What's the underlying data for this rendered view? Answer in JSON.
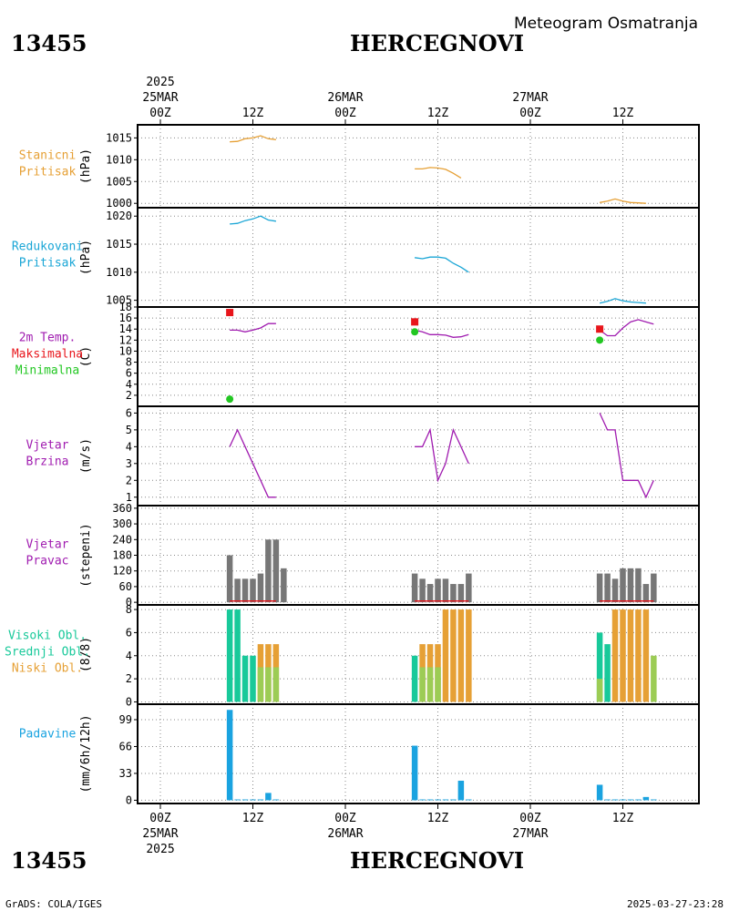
{
  "header": {
    "station_id": "13455",
    "station_name": "HERCEGNOVI",
    "subtitle": "Meteogram Osmatranja"
  },
  "time_axis": {
    "top": [
      {
        "year": "2025",
        "date": "25MAR",
        "hour": "00Z"
      },
      {
        "hour": "12Z"
      },
      {
        "date": "26MAR",
        "hour": "00Z"
      },
      {
        "hour": "12Z"
      },
      {
        "date": "27MAR",
        "hour": "00Z"
      },
      {
        "hour": "12Z"
      }
    ],
    "bottom": [
      {
        "hour": "00Z",
        "date": "25MAR",
        "year": "2025"
      },
      {
        "hour": "12Z"
      },
      {
        "hour": "00Z",
        "date": "26MAR"
      },
      {
        "hour": "12Z"
      },
      {
        "hour": "00Z",
        "date": "27MAR"
      },
      {
        "hour": "12Z"
      }
    ]
  },
  "footer": {
    "credit": "GrADS: COLA/IGES",
    "timestamp": "2025-03-27-23:28"
  },
  "colors": {
    "orange": "#e6a035",
    "cyan": "#1aa6d6",
    "red": "#e8151b",
    "green": "#22c722",
    "purple": "#a01cb0",
    "gray": "#777777",
    "teal": "#18c99a",
    "olive": "#9ccc55",
    "blue": "#1aa3e0"
  },
  "chart_data": [
    {
      "id": "stanicni",
      "type": "line",
      "labels": [
        {
          "text": "Stanicni",
          "color": "#e6a035"
        },
        {
          "text": "Pritisak",
          "color": "#e6a035"
        }
      ],
      "ylabel": "(hPa)",
      "ylim": [
        999,
        1018
      ],
      "yticks": [
        1000,
        1005,
        1010,
        1015
      ],
      "series": [
        {
          "color": "#e6a035",
          "points": [
            [
              9,
              1014.1
            ],
            [
              10,
              1014.2
            ],
            [
              11,
              1014.8
            ],
            [
              12,
              1015.0
            ],
            [
              13,
              1015.5
            ],
            [
              14,
              1014.8
            ],
            [
              15,
              1014.6
            ]
          ]
        },
        {
          "color": "#e6a035",
          "points": [
            [
              33,
              1007.9
            ],
            [
              34,
              1007.9
            ],
            [
              35,
              1008.2
            ],
            [
              36,
              1008.1
            ],
            [
              37,
              1007.8
            ],
            [
              38,
              1006.9
            ],
            [
              39,
              1005.8
            ]
          ]
        },
        {
          "color": "#e6a035",
          "points": [
            [
              57,
              1000.2
            ],
            [
              58,
              1000.5
            ],
            [
              59,
              1001.0
            ],
            [
              60,
              1000.5
            ],
            [
              61,
              1000.2
            ],
            [
              62,
              1000.1
            ],
            [
              63,
              1000.0
            ]
          ]
        }
      ]
    },
    {
      "id": "redukovani",
      "type": "line",
      "labels": [
        {
          "text": "Redukovani",
          "color": "#1aa6d6"
        },
        {
          "text": "Pritisak",
          "color": "#1aa6d6"
        }
      ],
      "ylabel": "(hPa)",
      "ylim": [
        1003.8,
        1021.5
      ],
      "yticks": [
        1005,
        1010,
        1015,
        1020
      ],
      "series": [
        {
          "color": "#1aa6d6",
          "points": [
            [
              9,
              1018.6
            ],
            [
              10,
              1018.7
            ],
            [
              11,
              1019.2
            ],
            [
              12,
              1019.5
            ],
            [
              13,
              1020.0
            ],
            [
              14,
              1019.3
            ],
            [
              15,
              1019.1
            ]
          ]
        },
        {
          "color": "#1aa6d6",
          "points": [
            [
              33,
              1012.6
            ],
            [
              34,
              1012.4
            ],
            [
              35,
              1012.7
            ],
            [
              36,
              1012.7
            ],
            [
              37,
              1012.5
            ],
            [
              38,
              1011.6
            ],
            [
              39,
              1010.9
            ],
            [
              40,
              1010.0
            ]
          ]
        },
        {
          "color": "#1aa6d6",
          "points": [
            [
              57,
              1004.5
            ],
            [
              58,
              1004.8
            ],
            [
              59,
              1005.3
            ],
            [
              60,
              1004.9
            ],
            [
              61,
              1004.7
            ],
            [
              62,
              1004.6
            ],
            [
              63,
              1004.5
            ]
          ]
        }
      ]
    },
    {
      "id": "temperatura",
      "type": "line",
      "labels": [
        {
          "text": "2m Temp.",
          "color": "#a01cb0"
        },
        {
          "text": "Maksimalna",
          "color": "#e8151b"
        },
        {
          "text": "Minimalna",
          "color": "#22c722"
        }
      ],
      "ylabel": "(C)",
      "ylim": [
        0,
        18
      ],
      "yticks": [
        2,
        4,
        6,
        8,
        10,
        12,
        14,
        16,
        18
      ],
      "series": [
        {
          "color": "#a01cb0",
          "points": [
            [
              9,
              13.8
            ],
            [
              10,
              13.8
            ],
            [
              11,
              13.5
            ],
            [
              12,
              13.8
            ],
            [
              13,
              14.2
            ],
            [
              14,
              15.0
            ],
            [
              15,
              15.0
            ]
          ]
        },
        {
          "color": "#a01cb0",
          "points": [
            [
              33,
              13.8
            ],
            [
              34,
              13.5
            ],
            [
              35,
              13.0
            ],
            [
              36,
              13.0
            ],
            [
              37,
              12.9
            ],
            [
              38,
              12.5
            ],
            [
              39,
              12.6
            ],
            [
              40,
              13.0
            ]
          ]
        },
        {
          "color": "#a01cb0",
          "points": [
            [
              57,
              13.8
            ],
            [
              58,
              12.8
            ],
            [
              59,
              12.8
            ],
            [
              60,
              14.2
            ],
            [
              61,
              15.3
            ],
            [
              62,
              15.7
            ],
            [
              63,
              15.3
            ],
            [
              64,
              14.9
            ]
          ]
        }
      ],
      "max_points": [
        [
          9,
          17.0
        ],
        [
          33,
          15.3
        ],
        [
          57,
          14.0
        ]
      ],
      "min_points": [
        [
          9,
          1.3
        ],
        [
          33,
          13.5
        ],
        [
          57,
          12.0
        ]
      ]
    },
    {
      "id": "vjetar_brzina",
      "type": "line",
      "labels": [
        {
          "text": "Vjetar",
          "color": "#a01cb0"
        },
        {
          "text": "Brzina",
          "color": "#a01cb0"
        }
      ],
      "ylabel": "(m/s)",
      "ylim": [
        0.5,
        6.4
      ],
      "yticks": [
        1,
        2,
        3,
        4,
        5,
        6
      ],
      "series": [
        {
          "color": "#a01cb0",
          "points": [
            [
              9,
              4
            ],
            [
              10,
              5
            ],
            [
              11,
              4
            ],
            [
              12,
              3
            ],
            [
              13,
              2
            ],
            [
              14,
              1
            ],
            [
              15,
              1
            ]
          ]
        },
        {
          "color": "#a01cb0",
          "points": [
            [
              33,
              4
            ],
            [
              34,
              4
            ],
            [
              35,
              5
            ],
            [
              36,
              2
            ],
            [
              37,
              3
            ],
            [
              38,
              5
            ],
            [
              39,
              4
            ],
            [
              40,
              3
            ]
          ]
        },
        {
          "color": "#a01cb0",
          "points": [
            [
              57,
              6
            ],
            [
              58,
              5
            ],
            [
              59,
              5
            ],
            [
              60,
              2
            ],
            [
              61,
              2
            ],
            [
              62,
              2
            ],
            [
              63,
              1
            ],
            [
              64,
              2
            ]
          ]
        }
      ]
    },
    {
      "id": "vjetar_pravac",
      "type": "bar",
      "labels": [
        {
          "text": "Vjetar",
          "color": "#a01cb0"
        },
        {
          "text": "Pravac",
          "color": "#a01cb0"
        }
      ],
      "ylabel": "(stepeni)",
      "ylim": [
        -10,
        370
      ],
      "yticks": [
        0,
        60,
        120,
        180,
        240,
        300,
        360
      ],
      "color": "#777777",
      "bars": [
        [
          9,
          180
        ],
        [
          10,
          90
        ],
        [
          11,
          90
        ],
        [
          12,
          90
        ],
        [
          13,
          110
        ],
        [
          14,
          240
        ],
        [
          15,
          240
        ],
        [
          16,
          130
        ],
        [
          33,
          110
        ],
        [
          34,
          90
        ],
        [
          35,
          70
        ],
        [
          36,
          90
        ],
        [
          37,
          90
        ],
        [
          38,
          70
        ],
        [
          39,
          70
        ],
        [
          40,
          110
        ],
        [
          57,
          110
        ],
        [
          58,
          110
        ],
        [
          59,
          90
        ],
        [
          60,
          130
        ],
        [
          61,
          130
        ],
        [
          62,
          130
        ],
        [
          63,
          70
        ],
        [
          64,
          110
        ]
      ]
    },
    {
      "id": "oblaci",
      "type": "bar",
      "labels": [
        {
          "text": "Visoki Obl.",
          "color": "#18c99a"
        },
        {
          "text": "Srednji Obl.",
          "color": "#18c99a"
        },
        {
          "text": "Niski Obl.",
          "color": "#e6a035"
        }
      ],
      "ylabel": "(8/8)",
      "ylim": [
        -0.2,
        8.4
      ],
      "yticks": [
        0,
        2,
        4,
        6,
        8
      ],
      "bars": [
        [
          9,
          8,
          "#18c99a"
        ],
        [
          10,
          8,
          "#18c99a"
        ],
        [
          11,
          4,
          "#18c99a"
        ],
        [
          12,
          4,
          "#18c99a"
        ],
        [
          13,
          5,
          "#e6a035",
          3
        ],
        [
          14,
          5,
          "#e6a035",
          3
        ],
        [
          15,
          5,
          "#e6a035",
          3
        ],
        [
          33,
          4,
          "#18c99a"
        ],
        [
          34,
          5,
          "#e6a035",
          3
        ],
        [
          35,
          5,
          "#e6a035",
          3
        ],
        [
          36,
          5,
          "#e6a035",
          3
        ],
        [
          37,
          8,
          "#e6a035"
        ],
        [
          38,
          8,
          "#e6a035"
        ],
        [
          39,
          8,
          "#e6a035"
        ],
        [
          40,
          8,
          "#e6a035"
        ],
        [
          57,
          6,
          "#18c99a",
          2
        ],
        [
          58,
          5,
          "#18c99a"
        ],
        [
          59,
          8,
          "#e6a035"
        ],
        [
          60,
          8,
          "#e6a035"
        ],
        [
          61,
          8,
          "#e6a035"
        ],
        [
          62,
          8,
          "#e6a035"
        ],
        [
          63,
          8,
          "#e6a035"
        ],
        [
          64,
          4,
          "#9ccc55"
        ]
      ]
    },
    {
      "id": "padavine",
      "type": "bar",
      "labels": [
        {
          "text": "Padavine",
          "color": "#1aa3e0"
        }
      ],
      "ylabel": "(mm/6h/12h)",
      "ylim": [
        -4,
        118
      ],
      "yticks": [
        0,
        33,
        66,
        99
      ],
      "color": "#1aa3e0",
      "bars": [
        [
          9,
          111
        ],
        [
          10,
          1
        ],
        [
          11,
          1
        ],
        [
          12,
          1
        ],
        [
          13,
          1
        ],
        [
          14,
          9
        ],
        [
          15,
          1
        ],
        [
          33,
          67
        ],
        [
          34,
          1
        ],
        [
          35,
          1
        ],
        [
          36,
          1
        ],
        [
          37,
          1
        ],
        [
          38,
          1
        ],
        [
          39,
          24
        ],
        [
          40,
          1
        ],
        [
          57,
          19
        ],
        [
          58,
          1
        ],
        [
          59,
          1
        ],
        [
          60,
          1
        ],
        [
          61,
          1
        ],
        [
          62,
          1
        ],
        [
          63,
          4
        ],
        [
          64,
          1
        ]
      ]
    }
  ]
}
